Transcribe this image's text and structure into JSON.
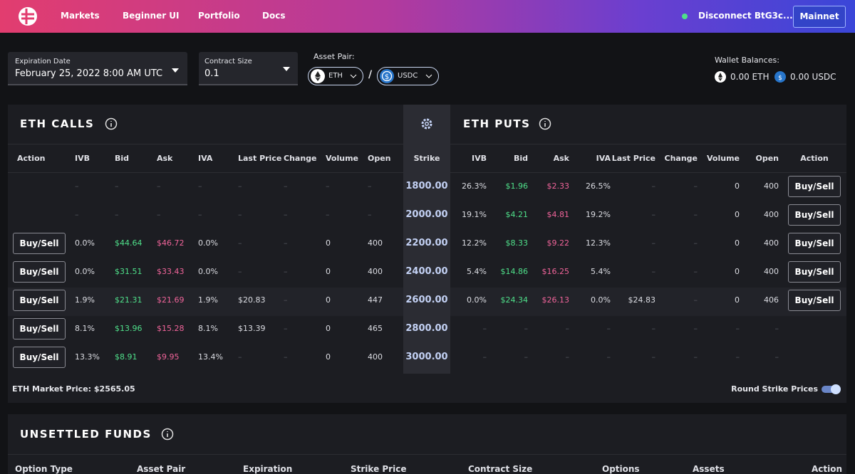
{
  "nav": {
    "links": [
      "Markets",
      "Beginner UI",
      "Portfolio",
      "Docs"
    ],
    "wallet": "Disconnect BtG3c...",
    "network": "Mainnet"
  },
  "controls": {
    "expiration": {
      "label": "Expiration Date",
      "value": "February 25, 2022 8:00 AM UTC"
    },
    "contract_size": {
      "label": "Contract Size",
      "value": "0.1"
    },
    "asset_pair": {
      "label": "Asset Pair:",
      "base": "ETH",
      "separator": "/",
      "quote": "USDC"
    },
    "wallet_balances": {
      "label": "Wallet Balances:",
      "balances": [
        "0.00 ETH",
        "0.00 USDC"
      ]
    }
  },
  "chain": {
    "calls_title": "ETH CALLS",
    "puts_title": "ETH PUTS",
    "call_headers": [
      "Action",
      "IVB",
      "Bid",
      "Ask",
      "IVA",
      "Last Price",
      "Change",
      "Volume",
      "Open"
    ],
    "strike_header": "Strike",
    "put_headers": [
      "IVB",
      "Bid",
      "Ask",
      "IVA",
      "Last Price",
      "Change",
      "Volume",
      "Open",
      "Action"
    ],
    "rows": [
      {
        "call": [
          null,
          "–",
          "–",
          "–",
          "–",
          "–",
          "–",
          "–",
          "–"
        ],
        "strike": "1800.00",
        "put": [
          "26.3%",
          "$1.96",
          "$2.33",
          "26.5%",
          "–",
          "–",
          "0",
          "400",
          "Buy/Sell"
        ]
      },
      {
        "call": [
          null,
          "–",
          "–",
          "–",
          "–",
          "–",
          "–",
          "–",
          "–"
        ],
        "strike": "2000.00",
        "put": [
          "19.1%",
          "$4.21",
          "$4.81",
          "19.2%",
          "–",
          "–",
          "0",
          "400",
          "Buy/Sell"
        ]
      },
      {
        "call": [
          "Buy/Sell",
          "0.0%",
          "$44.64",
          "$46.72",
          "0.0%",
          "–",
          "–",
          "0",
          "400"
        ],
        "strike": "2200.00",
        "put": [
          "12.2%",
          "$8.33",
          "$9.22",
          "12.3%",
          "–",
          "–",
          "0",
          "400",
          "Buy/Sell"
        ]
      },
      {
        "call": [
          "Buy/Sell",
          "0.0%",
          "$31.51",
          "$33.43",
          "0.0%",
          "–",
          "–",
          "0",
          "400"
        ],
        "strike": "2400.00",
        "put": [
          "5.4%",
          "$14.86",
          "$16.25",
          "5.4%",
          "–",
          "–",
          "0",
          "400",
          "Buy/Sell"
        ]
      },
      {
        "call": [
          "Buy/Sell",
          "1.9%",
          "$21.31",
          "$21.69",
          "1.9%",
          "$20.83",
          "–",
          "0",
          "447"
        ],
        "strike": "2600.00",
        "put": [
          "0.0%",
          "$24.34",
          "$26.13",
          "0.0%",
          "$24.83",
          "–",
          "0",
          "406",
          "Buy/Sell"
        ]
      },
      {
        "call": [
          "Buy/Sell",
          "8.1%",
          "$13.96",
          "$15.28",
          "8.1%",
          "$13.39",
          "–",
          "0",
          "465"
        ],
        "strike": "2800.00",
        "put": [
          "–",
          "–",
          "–",
          "–",
          "–",
          "–",
          "–",
          "–",
          null
        ]
      },
      {
        "call": [
          "Buy/Sell",
          "13.3%",
          "$8.91",
          "$9.95",
          "13.4%",
          "–",
          "–",
          "0",
          "400"
        ],
        "strike": "3000.00",
        "put": [
          "–",
          "–",
          "–",
          "–",
          "–",
          "–",
          "–",
          "–",
          null
        ]
      }
    ],
    "market_price": "ETH Market Price: $2565.05",
    "round_strikes": "Round Strike Prices"
  },
  "unsettled": {
    "title": "UNSETTLED FUNDS",
    "headers": [
      "Option Type",
      "Asset Pair",
      "Expiration",
      "Strike Price",
      "Contract Size",
      "Options",
      "Assets",
      "Action"
    ]
  }
}
